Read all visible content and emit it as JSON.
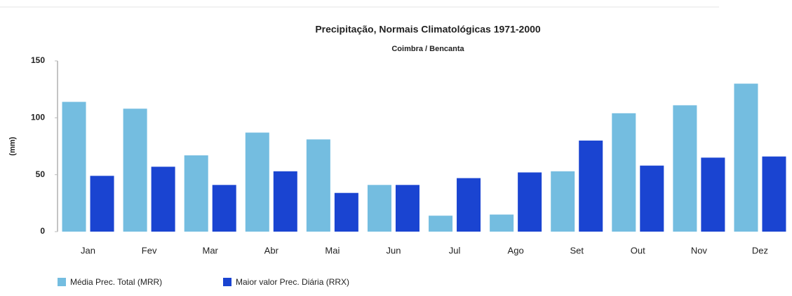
{
  "chart_data": {
    "type": "bar",
    "title": "Precipitação, Normais Climatológicas 1971-2000",
    "subtitle": "Coimbra / Bencanta",
    "y_label": "(mm)",
    "categories": [
      "Jan",
      "Fev",
      "Mar",
      "Abr",
      "Mai",
      "Jun",
      "Jul",
      "Ago",
      "Set",
      "Out",
      "Nov",
      "Dez"
    ],
    "series": [
      {
        "name": "Média Prec. Total (MRR)",
        "color": "#74bde0",
        "values": [
          114,
          108,
          67,
          87,
          81,
          41,
          14,
          15,
          53,
          104,
          111,
          130
        ]
      },
      {
        "name": "Maior valor Prec. Diária (RRX)",
        "color": "#1a44d1",
        "values": [
          49,
          57,
          41,
          53,
          34,
          41,
          47,
          52,
          80,
          58,
          65,
          66
        ]
      }
    ],
    "ylim": [
      0,
      150
    ],
    "yticks": [
      0,
      50,
      100,
      150
    ],
    "grid": false,
    "legend": "bottom"
  }
}
